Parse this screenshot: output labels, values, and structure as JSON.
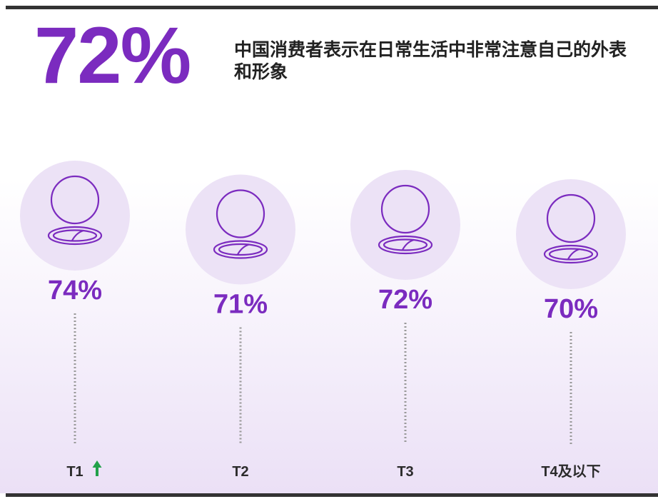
{
  "headline": {
    "stat": "72%",
    "text": "中国消费者表示在日常生活中非常注意自己的外表和形象"
  },
  "colors": {
    "accent": "#7b2bbf",
    "circle": "#ece2f6",
    "rule": "#333333",
    "up_arrow": "#22a14a"
  },
  "icons": [
    "compact-mirror-icon",
    "up-arrow-icon"
  ],
  "chart_data": {
    "type": "bar",
    "categories": [
      "T1",
      "T2",
      "T3",
      "T4及以下"
    ],
    "values": [
      74,
      71,
      72,
      70
    ],
    "value_labels": [
      "74%",
      "71%",
      "72%",
      "70%"
    ],
    "unit": "%",
    "trend_marker": {
      "category": "T1",
      "direction": "up"
    },
    "title": "",
    "xlabel": "",
    "ylabel": ""
  }
}
